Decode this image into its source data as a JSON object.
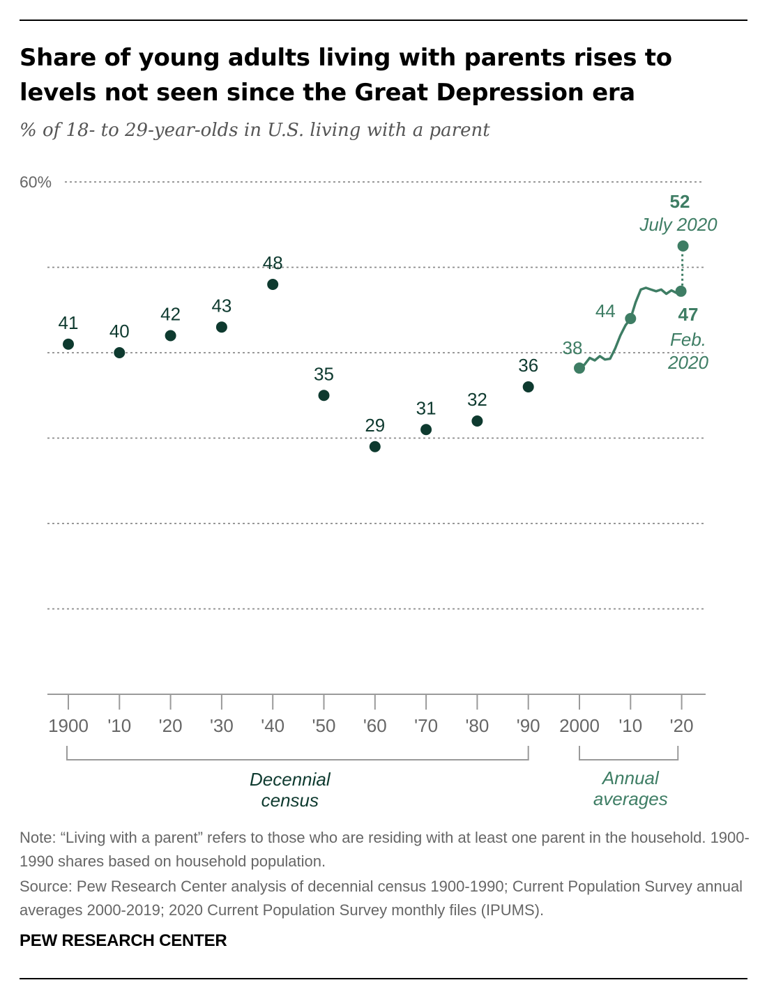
{
  "title": "Share of young adults living with parents rises to levels not seen since the Great Depression era",
  "subtitle": "% of 18- to 29-year-olds in U.S. living with a parent",
  "colors": {
    "census": "#0e3a2f",
    "annual": "#3e7d64",
    "grid": "#8a8a8a",
    "tick_text": "#666666"
  },
  "chart_data": {
    "type": "scatter",
    "title": "Share of young adults living with parents rises to levels not seen since the Great Depression era",
    "ylim": [
      0,
      60
    ],
    "y_ticks": [
      0,
      10,
      20,
      30,
      40,
      50,
      60
    ],
    "y_tick_label": "60%",
    "grid": true,
    "x_ticks": [
      {
        "x": 1900,
        "label": "1900"
      },
      {
        "x": 1910,
        "label": "'10"
      },
      {
        "x": 1920,
        "label": "'20"
      },
      {
        "x": 1930,
        "label": "'30"
      },
      {
        "x": 1940,
        "label": "'40"
      },
      {
        "x": 1950,
        "label": "'50"
      },
      {
        "x": 1960,
        "label": "'60"
      },
      {
        "x": 1970,
        "label": "'70"
      },
      {
        "x": 1980,
        "label": "'80"
      },
      {
        "x": 1990,
        "label": "'90"
      },
      {
        "x": 2000,
        "label": "2000"
      },
      {
        "x": 2010,
        "label": "'10"
      },
      {
        "x": 2020,
        "label": "'20"
      }
    ],
    "census_points": [
      {
        "x": 1900,
        "y": 41
      },
      {
        "x": 1910,
        "y": 40
      },
      {
        "x": 1920,
        "y": 42
      },
      {
        "x": 1930,
        "y": 43
      },
      {
        "x": 1940,
        "y": 48
      },
      {
        "x": 1950,
        "y": 35
      },
      {
        "x": 1960,
        "y": 29
      },
      {
        "x": 1970,
        "y": 31
      },
      {
        "x": 1980,
        "y": 32
      },
      {
        "x": 1990,
        "y": 36
      }
    ],
    "annual_series": [
      {
        "x": 2000,
        "y": 38.2
      },
      {
        "x": 2001,
        "y": 38.6
      },
      {
        "x": 2002,
        "y": 39.4
      },
      {
        "x": 2003,
        "y": 39.1
      },
      {
        "x": 2004,
        "y": 39.6
      },
      {
        "x": 2005,
        "y": 39.2
      },
      {
        "x": 2006,
        "y": 39.3
      },
      {
        "x": 2007,
        "y": 40.5
      },
      {
        "x": 2008,
        "y": 42.0
      },
      {
        "x": 2009,
        "y": 43.2
      },
      {
        "x": 2010,
        "y": 44.0
      },
      {
        "x": 2011,
        "y": 45.9
      },
      {
        "x": 2012,
        "y": 47.4
      },
      {
        "x": 2013,
        "y": 47.6
      },
      {
        "x": 2014,
        "y": 47.4
      },
      {
        "x": 2015,
        "y": 47.2
      },
      {
        "x": 2016,
        "y": 47.4
      },
      {
        "x": 2017,
        "y": 46.9
      },
      {
        "x": 2018,
        "y": 47.3
      },
      {
        "x": 2019,
        "y": 47.0
      },
      {
        "x": 2020,
        "y": 47.2
      }
    ],
    "annual_labeled": [
      {
        "x": 2000,
        "label": "38"
      },
      {
        "x": 2010,
        "label": "44"
      }
    ],
    "feb_2020": {
      "y": 47.2,
      "value_label": "47",
      "date_line1": "Feb.",
      "date_line2": "2020"
    },
    "july_2020": {
      "y": 52.5,
      "value_label": "52",
      "date_label": "July 2020"
    },
    "bracket_labels": {
      "census_line1": "Decennial",
      "census_line2": "census",
      "annual_line1": "Annual",
      "annual_line2": "averages"
    }
  },
  "note": "Note: “Living with a parent” refers to those who are residing with at least one parent in the household. 1900-1990 shares based on household population.",
  "source": "Source: Pew Research Center analysis of decennial census 1900-1990; Current Population Survey annual averages 2000-2019; 2020 Current Population Survey monthly files (IPUMS).",
  "brand": "PEW RESEARCH CENTER"
}
